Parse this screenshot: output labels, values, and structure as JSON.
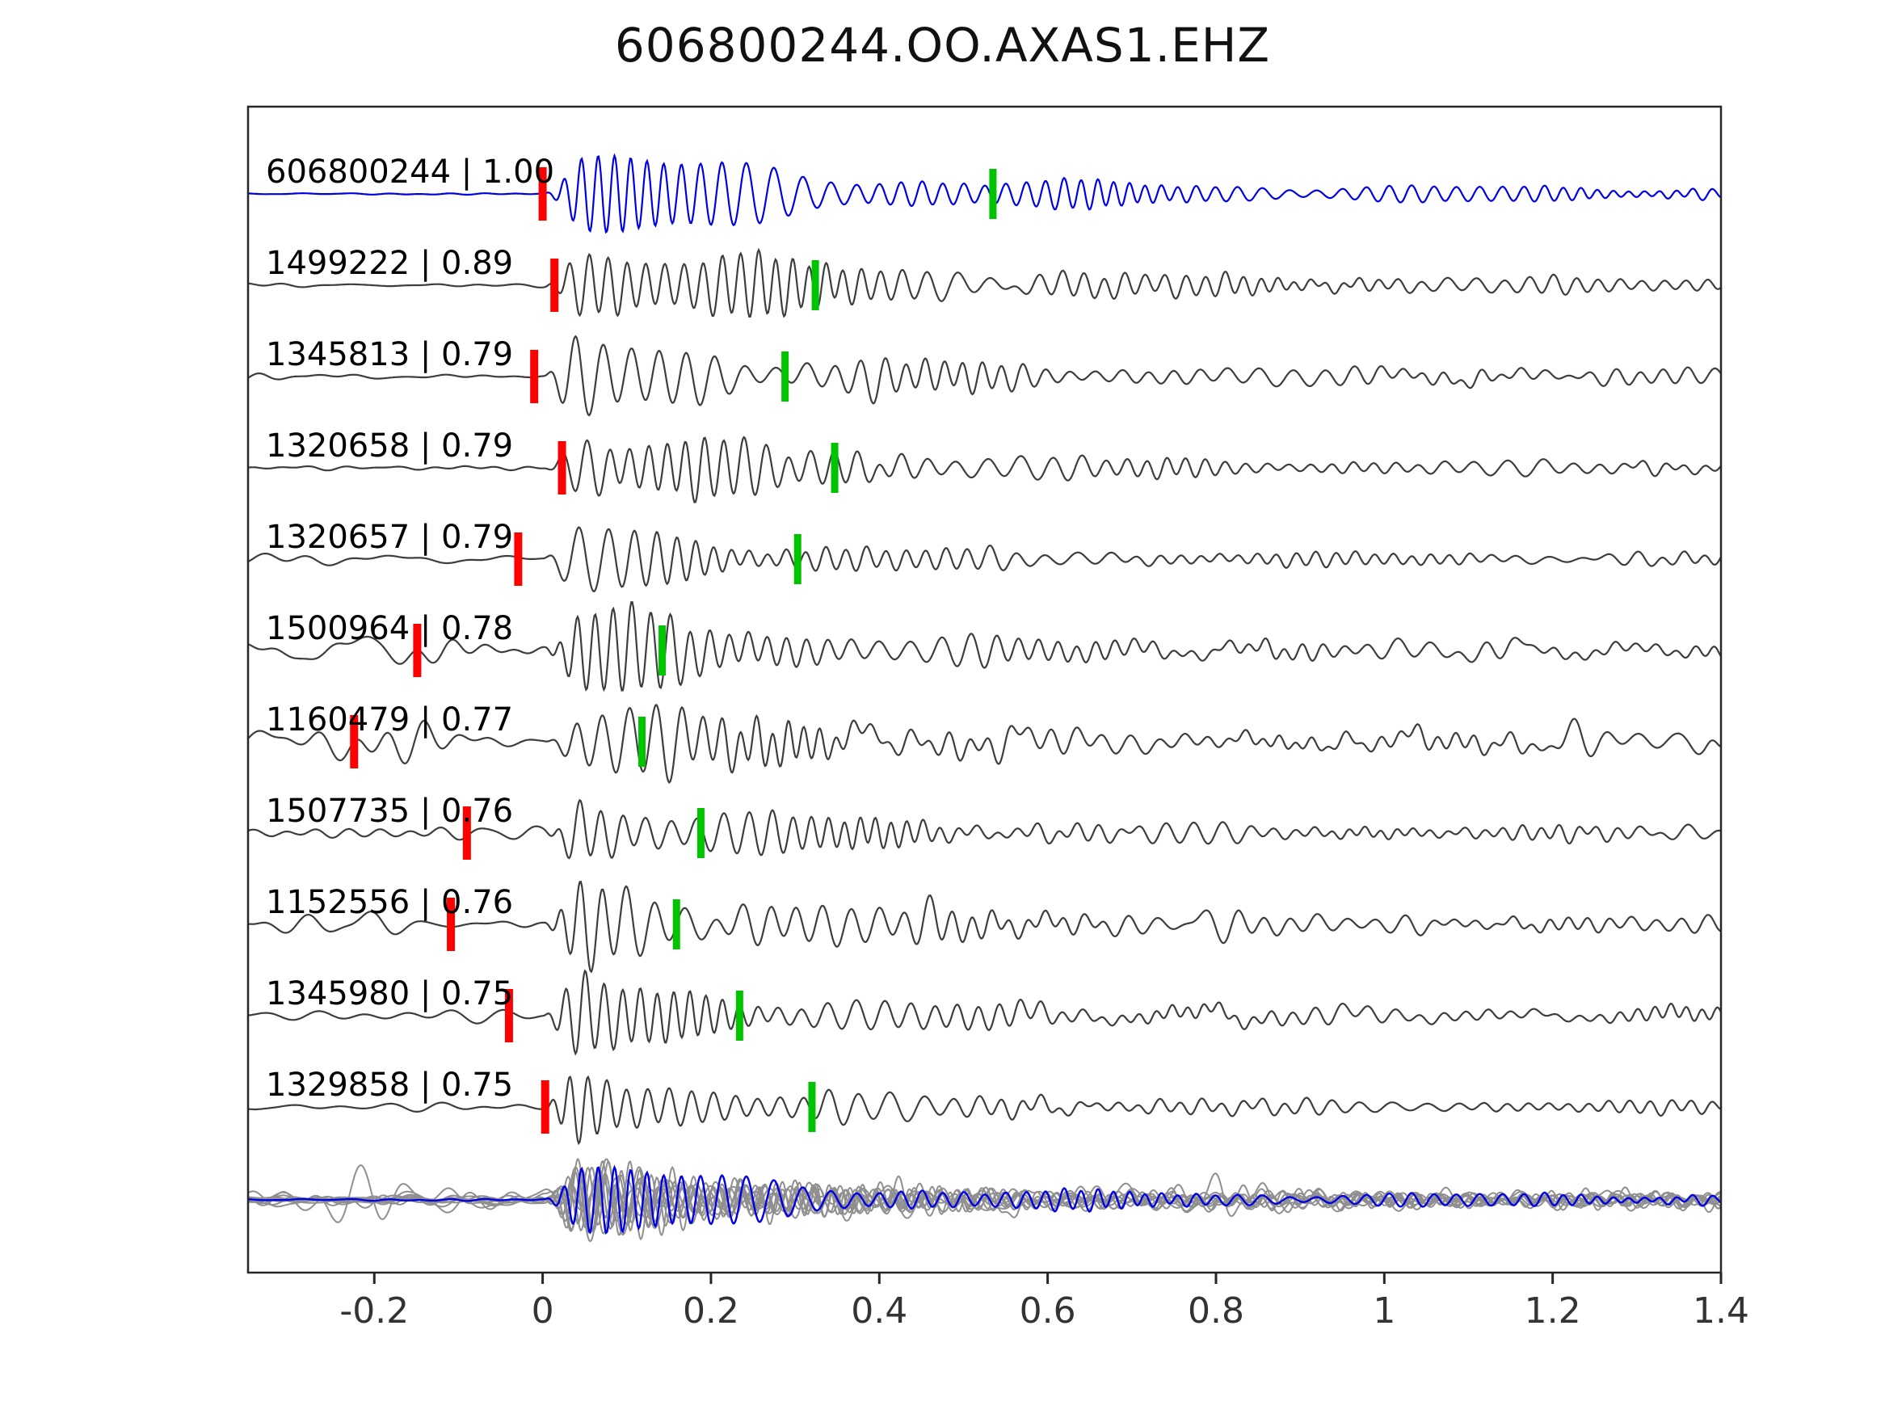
{
  "title": "606800244.OO.AXAS1.EHZ",
  "chart_data": {
    "type": "line",
    "title": "606800244.OO.AXAS1.EHZ",
    "subtitle": "",
    "xlabel": "",
    "ylabel": "",
    "xlim": [
      -0.35,
      1.4
    ],
    "grid": false,
    "legend": false,
    "x_ticks": [
      "-0.2",
      "0",
      "0.2",
      "0.4",
      "0.6",
      "0.8",
      "1",
      "1.2",
      "1.4"
    ],
    "x_tick_values": [
      -0.2,
      0,
      0.2,
      0.4,
      0.6,
      0.8,
      1.0,
      1.2,
      1.4
    ],
    "colors": {
      "trace": "#3d3d3d",
      "template": "#0000e6",
      "red_pick": "#ff0000",
      "green_pick": "#00c400",
      "stack": "#8f8f8f",
      "border": "#262626",
      "label_text": "#000000"
    },
    "traces": [
      {
        "id": "606800244",
        "correlation": "1.00",
        "label": "606800244 | 1.00",
        "is_template": true,
        "red_pick": 0.0,
        "green_pick": 0.535,
        "seed": 11,
        "noise": 1.5,
        "amp": 50,
        "decay": 0.32
      },
      {
        "id": "1499222",
        "correlation": "0.89",
        "label": "1499222 | 0.89",
        "is_template": false,
        "red_pick": 0.014,
        "green_pick": 0.324,
        "seed": 22,
        "noise": 5,
        "amp": 52,
        "decay": 0.3
      },
      {
        "id": "1345813",
        "correlation": "0.79",
        "label": "1345813 | 0.79",
        "is_template": false,
        "red_pick": -0.01,
        "green_pick": 0.288,
        "seed": 33,
        "noise": 6,
        "amp": 50,
        "decay": 0.28
      },
      {
        "id": "1320658",
        "correlation": "0.79",
        "label": "1320658 | 0.79",
        "is_template": false,
        "red_pick": 0.023,
        "green_pick": 0.347,
        "seed": 44,
        "noise": 5,
        "amp": 48,
        "decay": 0.26
      },
      {
        "id": "1320657",
        "correlation": "0.79",
        "label": "1320657 | 0.79",
        "is_template": false,
        "red_pick": -0.029,
        "green_pick": 0.303,
        "seed": 55,
        "noise": 4.5,
        "amp": 44,
        "decay": 0.22
      },
      {
        "id": "1500964",
        "correlation": "0.78",
        "label": "1500964 | 0.78",
        "is_template": false,
        "red_pick": -0.149,
        "green_pick": 0.142,
        "seed": 66,
        "noise": 9,
        "amp": 48,
        "decay": 0.28,
        "burst": {
          "t": -0.2,
          "a": 1.2
        }
      },
      {
        "id": "1160479",
        "correlation": "0.77",
        "label": "1160479 | 0.77",
        "is_template": false,
        "red_pick": -0.224,
        "green_pick": 0.118,
        "seed": 77,
        "noise": 14,
        "amp": 46,
        "decay": 0.26,
        "burst": {
          "t": -0.17,
          "a": 1.6
        }
      },
      {
        "id": "1507735",
        "correlation": "0.76",
        "label": "1507735 | 0.76",
        "is_template": false,
        "red_pick": -0.09,
        "green_pick": 0.188,
        "seed": 88,
        "noise": 6.5,
        "amp": 46,
        "decay": 0.24
      },
      {
        "id": "1152556",
        "correlation": "0.76",
        "label": "1152556 | 0.76",
        "is_template": false,
        "red_pick": -0.109,
        "green_pick": 0.159,
        "seed": 99,
        "noise": 11,
        "amp": 48,
        "decay": 0.3,
        "burst": {
          "t": -0.22,
          "a": 1.0
        }
      },
      {
        "id": "1345980",
        "correlation": "0.75",
        "label": "1345980 | 0.75",
        "is_template": false,
        "red_pick": -0.04,
        "green_pick": 0.234,
        "seed": 110,
        "noise": 7.5,
        "amp": 46,
        "decay": 0.26
      },
      {
        "id": "1329858",
        "correlation": "0.75",
        "label": "1329858 | 0.75",
        "is_template": false,
        "red_pick": 0.003,
        "green_pick": 0.32,
        "seed": 121,
        "noise": 5,
        "amp": 44,
        "decay": 0.24
      }
    ],
    "stack": {
      "description": "overlaid aligned detections with template overlay",
      "members": [
        {
          "seed": 201,
          "noise": 5,
          "amp": 42,
          "decay": 0.2
        },
        {
          "seed": 214,
          "noise": 8,
          "amp": 46,
          "decay": 0.22
        },
        {
          "seed": 227,
          "noise": 6,
          "amp": 40,
          "decay": 0.19
        },
        {
          "seed": 240,
          "noise": 14,
          "amp": 44,
          "decay": 0.21,
          "burst": {
            "t": -0.2,
            "a": 1.8
          }
        },
        {
          "seed": 253,
          "noise": 5,
          "amp": 43,
          "decay": 0.2
        },
        {
          "seed": 266,
          "noise": 7,
          "amp": 45,
          "decay": 0.23
        },
        {
          "seed": 279,
          "noise": 9,
          "amp": 41,
          "decay": 0.2,
          "burst": {
            "t": -0.26,
            "a": 1.4
          }
        },
        {
          "seed": 292,
          "noise": 6,
          "amp": 44,
          "decay": 0.22
        },
        {
          "seed": 305,
          "noise": 10,
          "amp": 42,
          "decay": 0.2
        },
        {
          "seed": 318,
          "noise": 6,
          "amp": 45,
          "decay": 0.21
        }
      ],
      "overlay": {
        "seed": 11,
        "noise": 2,
        "amp": 46,
        "decay": 0.24
      }
    }
  }
}
